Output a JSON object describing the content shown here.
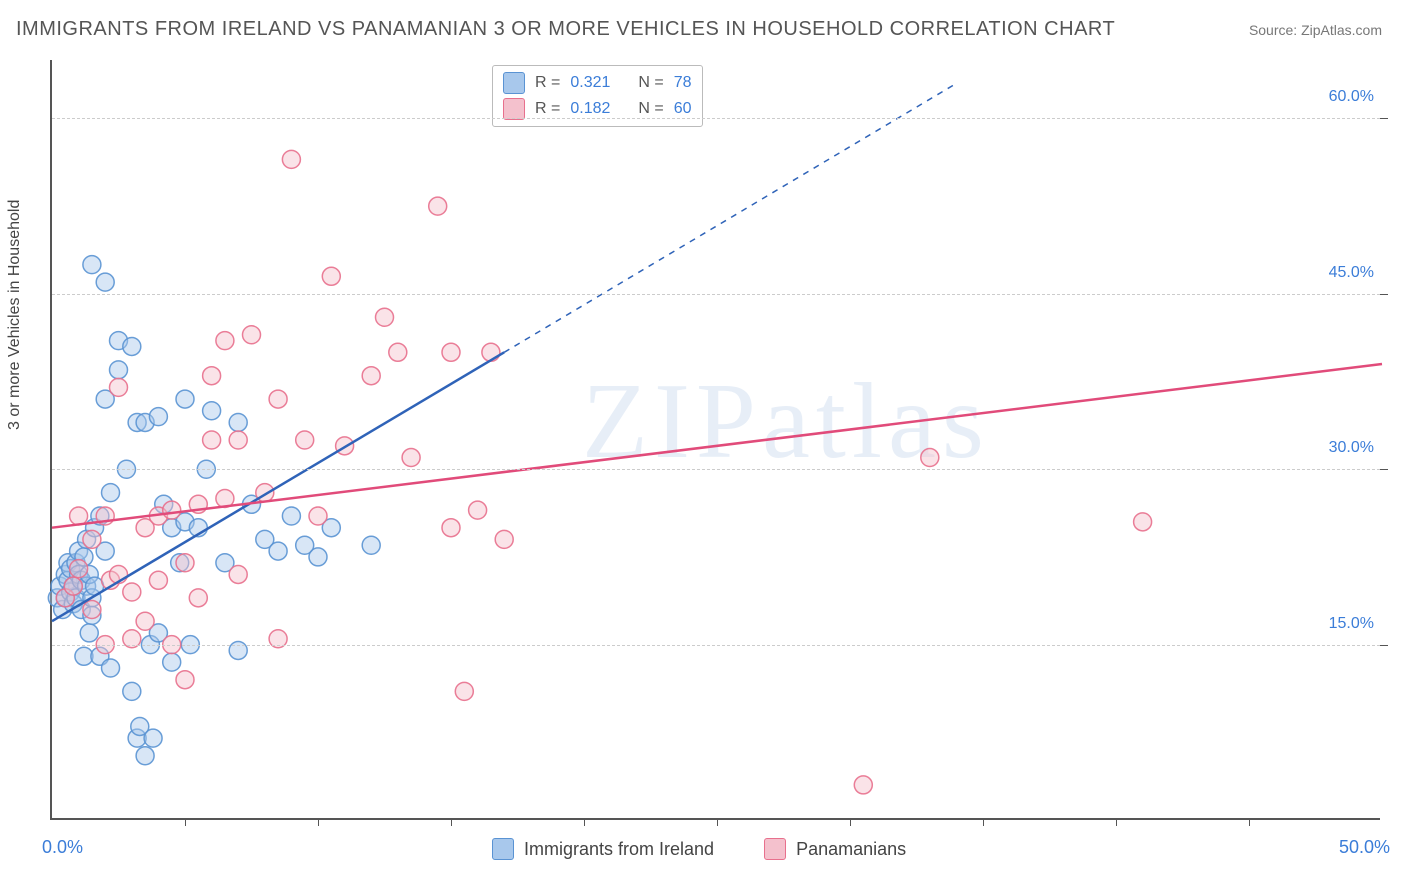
{
  "title": "IMMIGRANTS FROM IRELAND VS PANAMANIAN 3 OR MORE VEHICLES IN HOUSEHOLD CORRELATION CHART",
  "source": "Source: ZipAtlas.com",
  "watermark": "ZIPatlas",
  "yaxis_label": "3 or more Vehicles in Household",
  "chart": {
    "type": "scatter",
    "xlim": [
      0,
      50
    ],
    "ylim": [
      0,
      65
    ],
    "x_min_label": "0.0%",
    "x_max_label": "50.0%",
    "x_ticks": [
      5,
      10,
      15,
      20,
      25,
      30,
      35,
      40,
      45
    ],
    "y_ticks": [
      {
        "v": 15,
        "label": "15.0%"
      },
      {
        "v": 30,
        "label": "30.0%"
      },
      {
        "v": 45,
        "label": "45.0%"
      },
      {
        "v": 60,
        "label": "60.0%"
      }
    ],
    "grid_color": "#cccccc",
    "background_color": "#ffffff",
    "marker_radius": 9,
    "marker_opacity": 0.45,
    "marker_stroke_opacity": 0.9
  },
  "series": [
    {
      "id": "ireland",
      "label": "Immigrants from Ireland",
      "fill": "#a8c8ec",
      "stroke": "#5a93d3",
      "line_color": "#2f63b8",
      "R": "0.321",
      "N": "78",
      "trend": {
        "x1": 0,
        "y1": 17,
        "x2": 17,
        "y2": 40
      },
      "trend_dash": {
        "x1": 17,
        "y1": 40,
        "x2": 34,
        "y2": 63
      },
      "points": [
        [
          0.2,
          19
        ],
        [
          0.3,
          20
        ],
        [
          0.4,
          18
        ],
        [
          0.5,
          21
        ],
        [
          0.5,
          19
        ],
        [
          0.6,
          20.5
        ],
        [
          0.6,
          22
        ],
        [
          0.7,
          19.5
        ],
        [
          0.7,
          21.5
        ],
        [
          0.8,
          18.5
        ],
        [
          0.8,
          20
        ],
        [
          0.9,
          22
        ],
        [
          0.9,
          19
        ],
        [
          1.0,
          21
        ],
        [
          1.0,
          23
        ],
        [
          1.1,
          18
        ],
        [
          1.1,
          20.5
        ],
        [
          1.2,
          14
        ],
        [
          1.2,
          22.5
        ],
        [
          1.3,
          20
        ],
        [
          1.3,
          24
        ],
        [
          1.4,
          16
        ],
        [
          1.4,
          21
        ],
        [
          1.5,
          19
        ],
        [
          1.5,
          17.5
        ],
        [
          1.6,
          25
        ],
        [
          1.6,
          20
        ],
        [
          1.8,
          14
        ],
        [
          1.8,
          26
        ],
        [
          2.0,
          36
        ],
        [
          2.0,
          23
        ],
        [
          2.2,
          13
        ],
        [
          2.2,
          28
        ],
        [
          2.5,
          38.5
        ],
        [
          2.5,
          41
        ],
        [
          2.8,
          30
        ],
        [
          3.0,
          11
        ],
        [
          3.0,
          40.5
        ],
        [
          3.2,
          34
        ],
        [
          3.2,
          7
        ],
        [
          3.3,
          8
        ],
        [
          3.5,
          5.5
        ],
        [
          3.5,
          34
        ],
        [
          3.7,
          15
        ],
        [
          3.8,
          7
        ],
        [
          4.0,
          34.5
        ],
        [
          4.0,
          16
        ],
        [
          4.2,
          27
        ],
        [
          4.5,
          13.5
        ],
        [
          4.5,
          25
        ],
        [
          4.8,
          22
        ],
        [
          5.0,
          25.5
        ],
        [
          5.0,
          36
        ],
        [
          5.2,
          15
        ],
        [
          5.5,
          25
        ],
        [
          5.8,
          30
        ],
        [
          6.0,
          35
        ],
        [
          6.5,
          22
        ],
        [
          7.0,
          14.5
        ],
        [
          7.0,
          34
        ],
        [
          7.5,
          27
        ],
        [
          8.0,
          24
        ],
        [
          8.5,
          23
        ],
        [
          9.0,
          26
        ],
        [
          9.5,
          23.5
        ],
        [
          10.0,
          22.5
        ],
        [
          10.5,
          25
        ],
        [
          12.0,
          23.5
        ],
        [
          1.5,
          47.5
        ],
        [
          2.0,
          46
        ]
      ]
    },
    {
      "id": "panama",
      "label": "Panamanians",
      "fill": "#f4c1cd",
      "stroke": "#e8708d",
      "line_color": "#e14b7a",
      "R": "0.182",
      "N": "60",
      "trend": {
        "x1": 0,
        "y1": 25,
        "x2": 50,
        "y2": 39
      },
      "points": [
        [
          0.5,
          19
        ],
        [
          0.8,
          20
        ],
        [
          1.0,
          21.5
        ],
        [
          1.0,
          26
        ],
        [
          1.5,
          18
        ],
        [
          1.5,
          24
        ],
        [
          2.0,
          15
        ],
        [
          2.0,
          26
        ],
        [
          2.2,
          20.5
        ],
        [
          2.5,
          21
        ],
        [
          2.5,
          37
        ],
        [
          3.0,
          19.5
        ],
        [
          3.0,
          15.5
        ],
        [
          3.5,
          25
        ],
        [
          3.5,
          17
        ],
        [
          4.0,
          26
        ],
        [
          4.0,
          20.5
        ],
        [
          4.5,
          15
        ],
        [
          4.5,
          26.5
        ],
        [
          5.0,
          12
        ],
        [
          5.0,
          22
        ],
        [
          5.5,
          27
        ],
        [
          5.5,
          19
        ],
        [
          6.0,
          38
        ],
        [
          6.0,
          32.5
        ],
        [
          6.5,
          27.5
        ],
        [
          6.5,
          41
        ],
        [
          7.0,
          21
        ],
        [
          7.0,
          32.5
        ],
        [
          7.5,
          41.5
        ],
        [
          8.0,
          28
        ],
        [
          8.5,
          15.5
        ],
        [
          8.5,
          36
        ],
        [
          9.0,
          56.5
        ],
        [
          9.5,
          32.5
        ],
        [
          10.0,
          26
        ],
        [
          10.5,
          46.5
        ],
        [
          11.0,
          32
        ],
        [
          12.0,
          38
        ],
        [
          12.5,
          43
        ],
        [
          13.0,
          40
        ],
        [
          13.5,
          31
        ],
        [
          14.5,
          52.5
        ],
        [
          15.0,
          25
        ],
        [
          15.0,
          40
        ],
        [
          15.5,
          11
        ],
        [
          16.0,
          26.5
        ],
        [
          16.5,
          40
        ],
        [
          17.0,
          24
        ],
        [
          30.5,
          3
        ],
        [
          33.0,
          31
        ],
        [
          41.0,
          25.5
        ]
      ]
    }
  ],
  "legend_top": {
    "R_label": "R =",
    "N_label": "N ="
  }
}
